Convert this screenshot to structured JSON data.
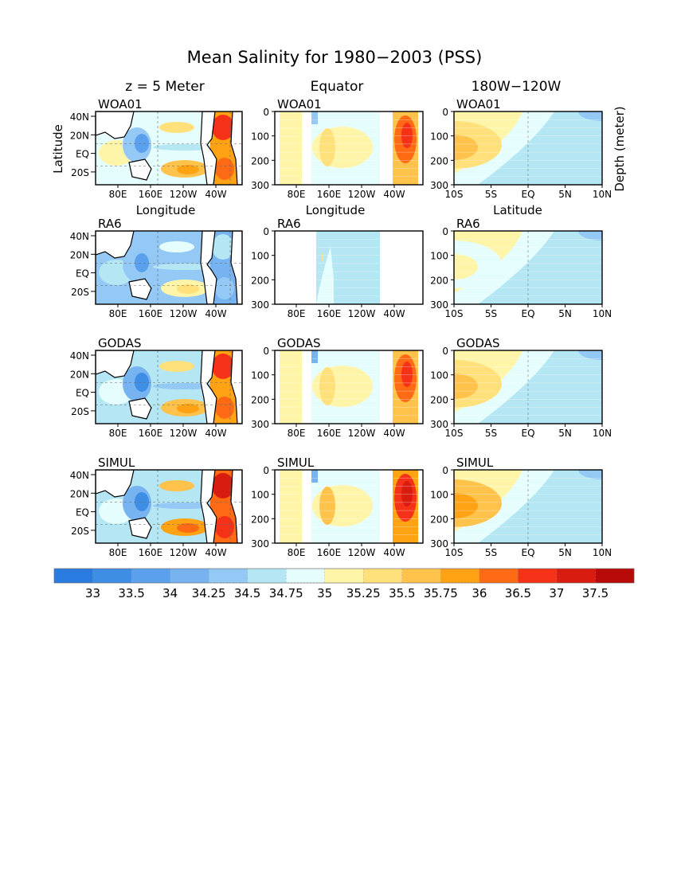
{
  "title": "Mean Salinity for 1980−2003 (PSS)",
  "column_titles": [
    "z = 5 Meter",
    "Equator",
    "180W−120W"
  ],
  "axis_labels": {
    "map_y": "Latitude",
    "map_x": "Longitude",
    "eq_x": "Longitude",
    "lat_x": "Latitude",
    "depth_y": "Depth (meter)"
  },
  "rows": [
    "WOA01",
    "RA6",
    "GODAS",
    "SIMUL"
  ],
  "ticks": {
    "map_lat": [
      "40N",
      "20N",
      "EQ",
      "20S"
    ],
    "lon": [
      "80E",
      "160E",
      "120W",
      "40W"
    ],
    "depth": [
      "0",
      "100",
      "200",
      "300"
    ],
    "lat": [
      "10S",
      "5S",
      "EQ",
      "5N",
      "10N"
    ]
  },
  "colorbar": {
    "labels": [
      "33",
      "33.5",
      "34",
      "34.25",
      "34.5",
      "34.75",
      "35",
      "35.25",
      "35.5",
      "35.75",
      "36",
      "36.5",
      "37",
      "37.5"
    ],
    "colors": [
      "#2a7be0",
      "#3e8ee6",
      "#5aa0ec",
      "#77b3f1",
      "#94c8f5",
      "#b4e6f3",
      "#e6fdfd",
      "#fff5a8",
      "#ffe07a",
      "#ffc24b",
      "#ffa214",
      "#ff6a14",
      "#f53218",
      "#d91c10",
      "#b80a08"
    ]
  },
  "chart_data": {
    "type": "heatmap",
    "variable": "salinity",
    "units": "PSS",
    "period": "1980−2003",
    "panels": [
      {
        "row": "WOA01",
        "view": "z = 5 Meter",
        "x": "Longitude",
        "y": "Latitude"
      },
      {
        "row": "WOA01",
        "view": "Equator",
        "x": "Longitude",
        "y": "Depth (meter)",
        "ylim": [
          300,
          0
        ]
      },
      {
        "row": "WOA01",
        "view": "180W−120W",
        "x": "Latitude",
        "y": "Depth (meter)",
        "xlim": [
          "10S",
          "10N"
        ],
        "ylim": [
          300,
          0
        ]
      },
      {
        "row": "RA6",
        "view": "z = 5 Meter",
        "x": "Longitude",
        "y": "Latitude"
      },
      {
        "row": "RA6",
        "view": "Equator",
        "x": "Longitude",
        "y": "Depth (meter)",
        "ylim": [
          300,
          0
        ]
      },
      {
        "row": "RA6",
        "view": "180W−120W",
        "x": "Latitude",
        "y": "Depth (meter)",
        "xlim": [
          "10S",
          "10N"
        ],
        "ylim": [
          300,
          0
        ]
      },
      {
        "row": "GODAS",
        "view": "z = 5 Meter",
        "x": "Longitude",
        "y": "Latitude"
      },
      {
        "row": "GODAS",
        "view": "Equator",
        "x": "Longitude",
        "y": "Depth (meter)",
        "ylim": [
          300,
          0
        ]
      },
      {
        "row": "GODAS",
        "view": "180W−120W",
        "x": "Latitude",
        "y": "Depth (meter)",
        "xlim": [
          "10S",
          "10N"
        ],
        "ylim": [
          300,
          0
        ]
      },
      {
        "row": "SIMUL",
        "view": "z = 5 Meter",
        "x": "Longitude",
        "y": "Latitude"
      },
      {
        "row": "SIMUL",
        "view": "Equator",
        "x": "Longitude",
        "y": "Depth (meter)",
        "ylim": [
          300,
          0
        ]
      },
      {
        "row": "SIMUL",
        "view": "180W−120W",
        "x": "Latitude",
        "y": "Depth (meter)",
        "xlim": [
          "10S",
          "10N"
        ],
        "ylim": [
          300,
          0
        ]
      }
    ],
    "contour_levels": [
      33,
      33.5,
      34,
      34.25,
      34.5,
      34.75,
      35,
      35.25,
      35.5,
      35.75,
      36,
      36.5,
      37,
      37.5
    ]
  }
}
